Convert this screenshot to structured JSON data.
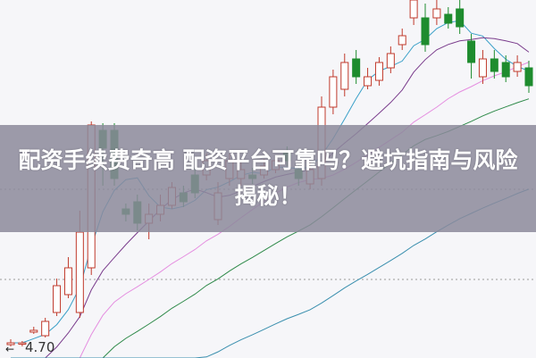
{
  "headline": {
    "line1": "配资手续费奇高 配资平台可靠吗？避坑指南与风险",
    "line2": "揭秘！"
  },
  "chart_data": {
    "type": "candlestick",
    "ylim": [
      4.635,
      6.64
    ],
    "grid": false,
    "price_label": "4.70",
    "reference_levels": [
      5.075,
      5.58
    ],
    "colors": {
      "up": "#c0392b",
      "down": "#1e8c2e",
      "ma5": "#3aa0c8",
      "ma10": "#7a3c8c",
      "ma20": "#e58ee0",
      "ma30": "#2f8a4a",
      "ma60": "#3a8fae"
    },
    "ma_periods": [
      5,
      10,
      20,
      30,
      60
    ],
    "candles": [
      [
        4.71,
        4.72,
        4.74,
        4.7
      ],
      [
        4.72,
        4.72,
        4.73,
        4.7
      ],
      [
        4.78,
        4.79,
        4.81,
        4.77
      ],
      [
        4.76,
        4.84,
        4.86,
        4.75
      ],
      [
        4.89,
        5.04,
        5.08,
        4.87
      ],
      [
        4.99,
        5.14,
        5.2,
        4.97
      ],
      [
        4.89,
        5.34,
        5.46,
        4.86
      ],
      [
        5.14,
        5.94,
        5.96,
        5.1
      ],
      [
        5.91,
        5.81,
        5.95,
        5.6
      ],
      [
        5.91,
        5.64,
        5.95,
        5.6
      ],
      [
        5.47,
        5.44,
        5.5,
        5.4
      ],
      [
        5.51,
        5.39,
        5.55,
        5.35
      ],
      [
        5.39,
        5.44,
        5.5,
        5.3
      ],
      [
        5.44,
        5.49,
        5.55,
        5.4
      ],
      [
        5.49,
        5.59,
        5.62,
        5.47
      ],
      [
        5.56,
        5.51,
        5.6,
        5.48
      ],
      [
        5.66,
        5.56,
        5.7,
        5.53
      ],
      [
        5.66,
        5.74,
        5.78,
        5.63
      ],
      [
        5.41,
        5.56,
        5.62,
        5.38
      ],
      [
        5.64,
        5.74,
        5.78,
        5.6
      ],
      [
        5.64,
        5.69,
        5.73,
        5.6
      ],
      [
        5.66,
        5.64,
        5.7,
        5.61
      ],
      [
        5.66,
        5.71,
        5.75,
        5.64
      ],
      [
        5.69,
        5.74,
        5.77,
        5.67
      ],
      [
        5.79,
        5.74,
        5.82,
        5.71
      ],
      [
        5.69,
        5.64,
        5.72,
        5.6
      ],
      [
        5.61,
        5.69,
        5.73,
        5.58
      ],
      [
        5.64,
        6.04,
        6.1,
        5.6
      ],
      [
        6.04,
        6.21,
        6.25,
        6.0
      ],
      [
        6.14,
        6.29,
        6.34,
        6.1
      ],
      [
        6.31,
        6.21,
        6.36,
        6.17
      ],
      [
        6.16,
        6.21,
        6.26,
        6.14
      ],
      [
        6.19,
        6.29,
        6.32,
        6.16
      ],
      [
        6.26,
        6.34,
        6.38,
        6.23
      ],
      [
        6.39,
        6.44,
        6.48,
        6.36
      ],
      [
        6.54,
        6.64,
        6.7,
        6.5
      ],
      [
        6.54,
        6.39,
        6.62,
        6.35
      ],
      [
        6.54,
        6.59,
        6.64,
        6.5
      ],
      [
        6.56,
        6.51,
        6.6,
        6.48
      ],
      [
        6.59,
        6.49,
        6.64,
        6.45
      ],
      [
        6.41,
        6.29,
        6.45,
        6.2
      ],
      [
        6.21,
        6.31,
        6.36,
        6.17
      ],
      [
        6.31,
        6.24,
        6.36,
        6.2
      ],
      [
        6.29,
        6.21,
        6.33,
        6.18
      ],
      [
        6.24,
        6.29,
        6.33,
        6.21
      ],
      [
        6.26,
        6.16,
        6.3,
        6.12
      ]
    ]
  }
}
